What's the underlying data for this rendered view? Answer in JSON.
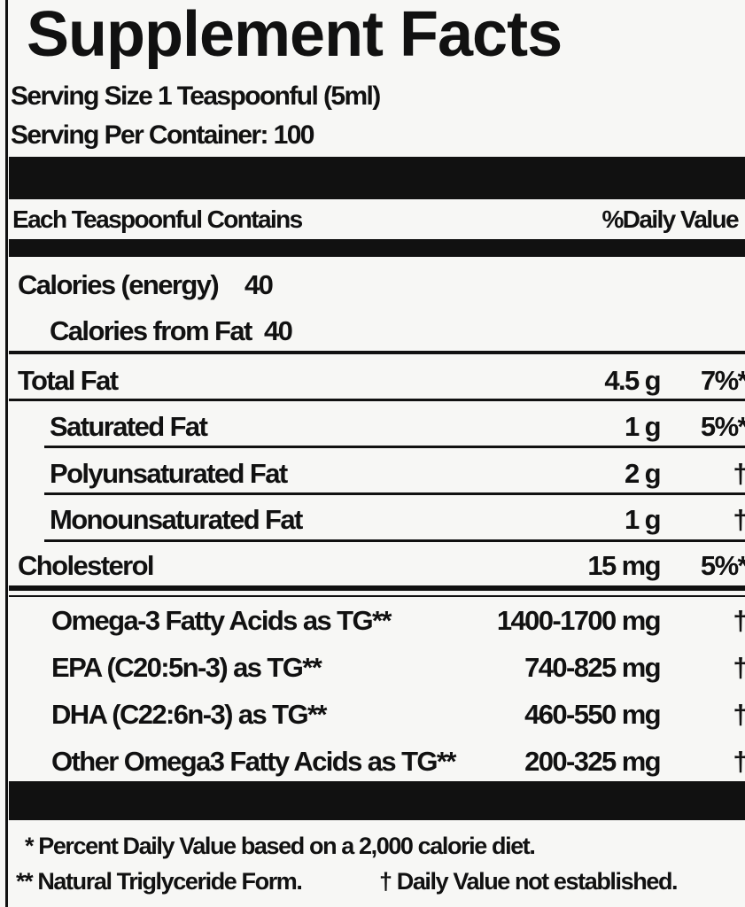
{
  "header": {
    "title": "Supplement Facts",
    "serving_size": "Serving Size 1 Teaspoonful (5ml)",
    "servings_per_container": "Serving Per Container: 100"
  },
  "column_header": {
    "left": "Each Teaspoonful Contains",
    "right": "%Daily Value"
  },
  "calories": {
    "label": "Calories (energy)",
    "value": "40"
  },
  "calories_from_fat": {
    "label": "Calories from Fat",
    "value": "40"
  },
  "rows": [
    {
      "name": "Total Fat",
      "amount": "4.5 g",
      "dv": "7%*"
    },
    {
      "name": "Saturated Fat",
      "amount": "1 g",
      "dv": "5%*"
    },
    {
      "name": "Polyunsaturated Fat",
      "amount": "2 g",
      "dv": "†"
    },
    {
      "name": "Monounsaturated Fat",
      "amount": "1 g",
      "dv": "†"
    },
    {
      "name": "Cholesterol",
      "amount": "15 mg",
      "dv": "5%*"
    },
    {
      "name": "Omega-3 Fatty Acids as TG**",
      "amount": "1400-1700 mg",
      "dv": "†"
    },
    {
      "name": "EPA (C20:5n-3) as TG**",
      "amount": "740-825 mg",
      "dv": "†"
    },
    {
      "name": "DHA (C22:6n-3) as TG**",
      "amount": "460-550 mg",
      "dv": "†"
    },
    {
      "name": "Other Omega3 Fatty Acids as TG**",
      "amount": "200-325 mg",
      "dv": "†"
    }
  ],
  "footnotes": {
    "percent": "* Percent Daily Value based on a 2,000 calorie diet.",
    "natural": "** Natural Triglyceride Form.",
    "dagger": "† Daily Value not established."
  }
}
